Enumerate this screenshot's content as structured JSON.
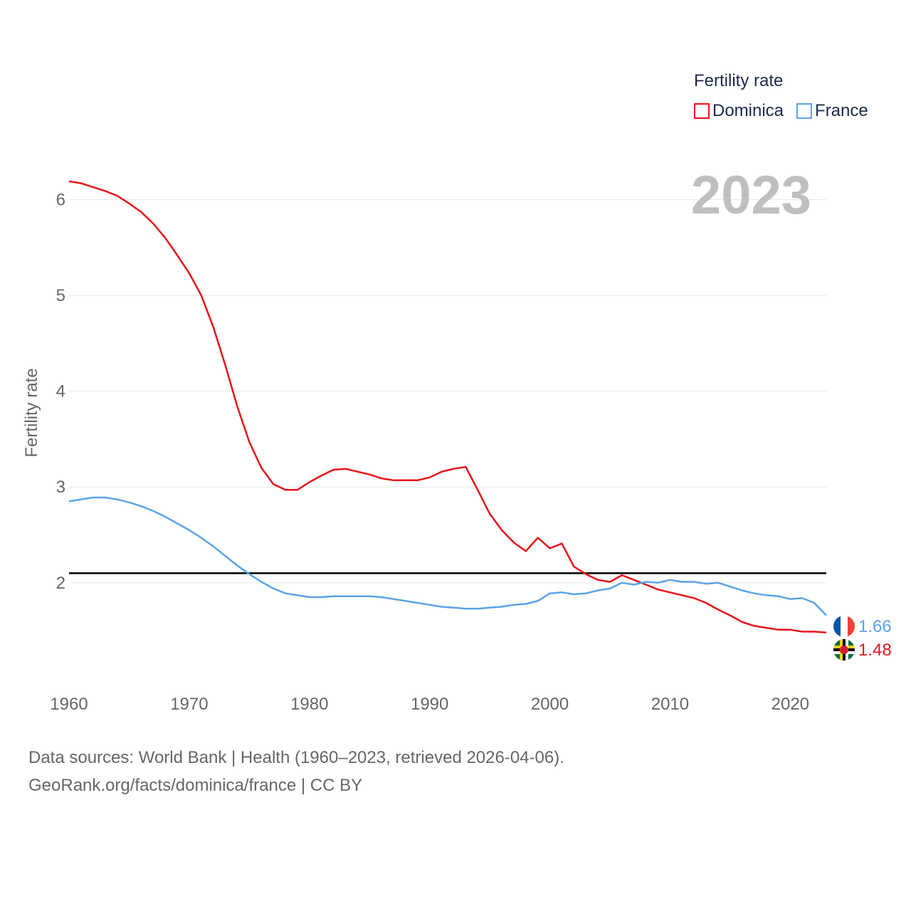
{
  "chart_data": {
    "type": "line",
    "ylabel": "Fertility rate",
    "xlabel": "",
    "year_label": "2023",
    "legend_title": "Fertility rate",
    "xlim": [
      1960,
      2023
    ],
    "ylim": [
      1.1,
      6.3
    ],
    "x_ticks": [
      1960,
      1970,
      1980,
      1990,
      2000,
      2010,
      2020
    ],
    "y_ticks": [
      2,
      3,
      4,
      5,
      6
    ],
    "reference_line": 2.1,
    "years": [
      1960,
      1961,
      1962,
      1963,
      1964,
      1965,
      1966,
      1967,
      1968,
      1969,
      1970,
      1971,
      1972,
      1973,
      1974,
      1975,
      1976,
      1977,
      1978,
      1979,
      1980,
      1981,
      1982,
      1983,
      1984,
      1985,
      1986,
      1987,
      1988,
      1989,
      1990,
      1991,
      1992,
      1993,
      1994,
      1995,
      1996,
      1997,
      1998,
      1999,
      2000,
      2001,
      2002,
      2003,
      2004,
      2005,
      2006,
      2007,
      2008,
      2009,
      2010,
      2011,
      2012,
      2013,
      2014,
      2015,
      2016,
      2017,
      2018,
      2019,
      2020,
      2021,
      2022,
      2023
    ],
    "series": [
      {
        "name": "Dominica",
        "color": "#e8131a",
        "end_label": "1.48",
        "values": [
          6.19,
          6.17,
          6.13,
          6.09,
          6.04,
          5.96,
          5.87,
          5.75,
          5.6,
          5.42,
          5.23,
          5.0,
          4.67,
          4.27,
          3.84,
          3.47,
          3.2,
          3.03,
          2.97,
          2.97,
          3.05,
          3.12,
          3.18,
          3.19,
          3.16,
          3.13,
          3.09,
          3.07,
          3.07,
          3.07,
          3.1,
          3.16,
          3.19,
          3.21,
          2.97,
          2.72,
          2.55,
          2.42,
          2.33,
          2.47,
          2.36,
          2.41,
          2.17,
          2.09,
          2.03,
          2.01,
          2.08,
          2.03,
          1.98,
          1.93,
          1.9,
          1.87,
          1.84,
          1.79,
          1.72,
          1.66,
          1.59,
          1.55,
          1.53,
          1.51,
          1.51,
          1.49,
          1.49,
          1.48
        ]
      },
      {
        "name": "France",
        "color": "#5ba3e6",
        "end_label": "1.66",
        "values": [
          2.85,
          2.87,
          2.89,
          2.89,
          2.87,
          2.84,
          2.8,
          2.75,
          2.69,
          2.62,
          2.55,
          2.47,
          2.38,
          2.28,
          2.18,
          2.09,
          2.01,
          1.94,
          1.89,
          1.87,
          1.85,
          1.85,
          1.86,
          1.86,
          1.86,
          1.86,
          1.85,
          1.83,
          1.81,
          1.79,
          1.77,
          1.75,
          1.74,
          1.73,
          1.73,
          1.74,
          1.75,
          1.77,
          1.78,
          1.81,
          1.89,
          1.9,
          1.88,
          1.89,
          1.92,
          1.94,
          2.0,
          1.98,
          2.01,
          2.0,
          2.03,
          2.01,
          2.01,
          1.99,
          2.0,
          1.96,
          1.92,
          1.89,
          1.87,
          1.86,
          1.83,
          1.84,
          1.79,
          1.66
        ]
      }
    ]
  },
  "legend": {
    "title": "Fertility rate",
    "items": [
      {
        "label": "Dominica",
        "color": "#e8131a"
      },
      {
        "label": "France",
        "color": "#5ba3e6"
      }
    ]
  },
  "footer": {
    "line1": "Data sources: World Bank | Health (1960–2023, retrieved 2026-04-06).",
    "line2": "GeoRank.org/facts/dominica/france | CC BY"
  }
}
